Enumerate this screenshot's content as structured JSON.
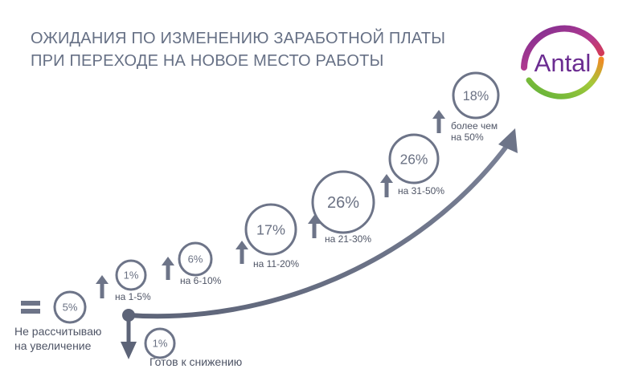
{
  "title_lines": [
    "ОЖИДАНИЯ ПО ИЗМЕНЕНИЮ ЗАРАБОТНОЙ ПЛАТЫ",
    "ПРИ ПЕРЕХОДЕ НА НОВОЕ МЕСТО РАБОТЫ"
  ],
  "logo_text": "Antal",
  "colors": {
    "accent": "#6d7488",
    "logo_purple": "#6b2c91",
    "logo_green": "#6cbf3f",
    "logo_orange": "#f08a24",
    "logo_red": "#e53935"
  },
  "chart_data": {
    "type": "bubble",
    "categories": [
      "Не рассчитываю на увеличение",
      "Готов к снижению",
      "на 1-5%",
      "на 6-10%",
      "на 11-20%",
      "на 21-30%",
      "на 31-50%",
      "более чем на 50%"
    ],
    "values": [
      5,
      1,
      1,
      6,
      17,
      26,
      26,
      18
    ],
    "value_labels": [
      "5%",
      "1%",
      "1%",
      "6%",
      "17%",
      "26%",
      "26%",
      "18%"
    ],
    "direction": [
      "equal",
      "down",
      "up",
      "up",
      "up",
      "up",
      "up",
      "up"
    ],
    "unit": "%"
  }
}
